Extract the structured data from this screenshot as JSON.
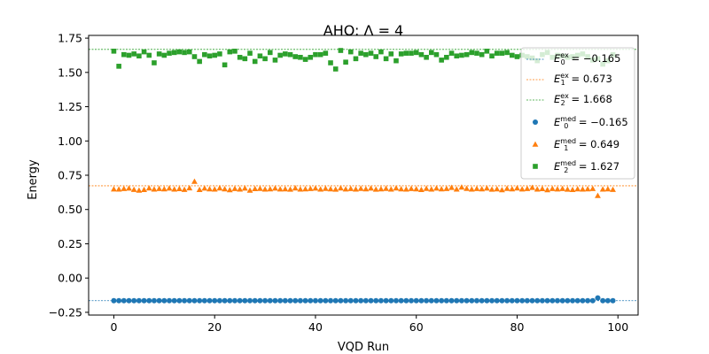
{
  "chart_data": {
    "type": "scatter",
    "title": "AHO: Λ = 4",
    "xlabel": "VQD Run",
    "ylabel": "Energy",
    "xlim": [
      -5,
      104
    ],
    "ylim": [
      -0.27,
      1.77
    ],
    "xticks": [
      0,
      20,
      40,
      60,
      80,
      100
    ],
    "yticks": [
      -0.25,
      0.0,
      0.25,
      0.5,
      0.75,
      1.0,
      1.25,
      1.5,
      1.75
    ],
    "xtick_labels": [
      "0",
      "20",
      "40",
      "60",
      "80",
      "100"
    ],
    "ytick_labels": [
      "−0.25",
      "0.00",
      "0.25",
      "0.50",
      "0.75",
      "1.00",
      "1.25",
      "1.50",
      "1.75"
    ],
    "grid": false,
    "legend_position": "top-right",
    "reference_lines": [
      {
        "label_base": "E",
        "sub": "0",
        "sup": "ex",
        "value_text": " = −0.165",
        "y": -0.165,
        "color": "#1f77b4"
      },
      {
        "label_base": "E",
        "sub": "1",
        "sup": "ex",
        "value_text": " = 0.673",
        "y": 0.673,
        "color": "#ff7f0e"
      },
      {
        "label_base": "E",
        "sub": "2",
        "sup": "ex",
        "value_text": " = 1.668",
        "y": 1.668,
        "color": "#2ca02c"
      }
    ],
    "series": [
      {
        "label_base": "E",
        "sub": "0",
        "sup": "med",
        "value_text": " = −0.165",
        "marker": "circle",
        "color": "#1f77b4",
        "x": [
          0,
          1,
          2,
          3,
          4,
          5,
          6,
          7,
          8,
          9,
          10,
          11,
          12,
          13,
          14,
          15,
          16,
          17,
          18,
          19,
          20,
          21,
          22,
          23,
          24,
          25,
          26,
          27,
          28,
          29,
          30,
          31,
          32,
          33,
          34,
          35,
          36,
          37,
          38,
          39,
          40,
          41,
          42,
          43,
          44,
          45,
          46,
          47,
          48,
          49,
          50,
          51,
          52,
          53,
          54,
          55,
          56,
          57,
          58,
          59,
          60,
          61,
          62,
          63,
          64,
          65,
          66,
          67,
          68,
          69,
          70,
          71,
          72,
          73,
          74,
          75,
          76,
          77,
          78,
          79,
          80,
          81,
          82,
          83,
          84,
          85,
          86,
          87,
          88,
          89,
          90,
          91,
          92,
          93,
          94,
          95,
          96,
          97,
          98,
          99
        ],
        "values": [
          -0.165,
          -0.165,
          -0.165,
          -0.165,
          -0.165,
          -0.165,
          -0.165,
          -0.165,
          -0.165,
          -0.165,
          -0.165,
          -0.165,
          -0.165,
          -0.165,
          -0.165,
          -0.165,
          -0.165,
          -0.165,
          -0.165,
          -0.165,
          -0.165,
          -0.165,
          -0.165,
          -0.165,
          -0.165,
          -0.165,
          -0.165,
          -0.165,
          -0.165,
          -0.165,
          -0.165,
          -0.165,
          -0.165,
          -0.165,
          -0.165,
          -0.165,
          -0.165,
          -0.165,
          -0.165,
          -0.165,
          -0.165,
          -0.165,
          -0.165,
          -0.165,
          -0.165,
          -0.165,
          -0.165,
          -0.165,
          -0.165,
          -0.165,
          -0.165,
          -0.165,
          -0.165,
          -0.165,
          -0.165,
          -0.165,
          -0.165,
          -0.165,
          -0.165,
          -0.165,
          -0.165,
          -0.165,
          -0.165,
          -0.165,
          -0.165,
          -0.165,
          -0.165,
          -0.165,
          -0.165,
          -0.165,
          -0.165,
          -0.165,
          -0.165,
          -0.165,
          -0.165,
          -0.165,
          -0.165,
          -0.165,
          -0.165,
          -0.165,
          -0.165,
          -0.165,
          -0.165,
          -0.165,
          -0.165,
          -0.165,
          -0.165,
          -0.165,
          -0.165,
          -0.165,
          -0.165,
          -0.165,
          -0.165,
          -0.165,
          -0.165,
          -0.165,
          -0.145,
          -0.165,
          -0.165,
          -0.165
        ]
      },
      {
        "label_base": "E",
        "sub": "1",
        "sup": "med",
        "value_text": " = 0.649",
        "marker": "triangle",
        "color": "#ff7f0e",
        "x": [
          0,
          1,
          2,
          3,
          4,
          5,
          6,
          7,
          8,
          9,
          10,
          11,
          12,
          13,
          14,
          15,
          16,
          17,
          18,
          19,
          20,
          21,
          22,
          23,
          24,
          25,
          26,
          27,
          28,
          29,
          30,
          31,
          32,
          33,
          34,
          35,
          36,
          37,
          38,
          39,
          40,
          41,
          42,
          43,
          44,
          45,
          46,
          47,
          48,
          49,
          50,
          51,
          52,
          53,
          54,
          55,
          56,
          57,
          58,
          59,
          60,
          61,
          62,
          63,
          64,
          65,
          66,
          67,
          68,
          69,
          70,
          71,
          72,
          73,
          74,
          75,
          76,
          77,
          78,
          79,
          80,
          81,
          82,
          83,
          84,
          85,
          86,
          87,
          88,
          89,
          90,
          91,
          92,
          93,
          94,
          95,
          96,
          97,
          98,
          99
        ],
        "values": [
          0.649,
          0.648,
          0.652,
          0.655,
          0.646,
          0.64,
          0.645,
          0.656,
          0.648,
          0.652,
          0.65,
          0.655,
          0.648,
          0.651,
          0.646,
          0.657,
          0.705,
          0.645,
          0.655,
          0.65,
          0.648,
          0.656,
          0.65,
          0.643,
          0.652,
          0.648,
          0.655,
          0.64,
          0.651,
          0.653,
          0.648,
          0.65,
          0.655,
          0.649,
          0.65,
          0.647,
          0.656,
          0.648,
          0.65,
          0.652,
          0.655,
          0.648,
          0.653,
          0.65,
          0.647,
          0.656,
          0.649,
          0.652,
          0.648,
          0.653,
          0.65,
          0.655,
          0.647,
          0.65,
          0.653,
          0.648,
          0.656,
          0.65,
          0.648,
          0.652,
          0.65,
          0.645,
          0.653,
          0.648,
          0.655,
          0.65,
          0.652,
          0.66,
          0.648,
          0.663,
          0.653,
          0.648,
          0.652,
          0.65,
          0.655,
          0.647,
          0.65,
          0.643,
          0.653,
          0.65,
          0.656,
          0.649,
          0.652,
          0.66,
          0.648,
          0.651,
          0.643,
          0.652,
          0.649,
          0.652,
          0.647,
          0.645,
          0.65,
          0.648,
          0.65,
          0.652,
          0.601,
          0.648,
          0.65,
          0.646
        ]
      },
      {
        "label_base": "E",
        "sub": "2",
        "sup": "med",
        "value_text": " = 1.627",
        "marker": "square",
        "color": "#2ca02c",
        "x": [
          0,
          1,
          2,
          3,
          4,
          5,
          6,
          7,
          8,
          9,
          10,
          11,
          12,
          13,
          14,
          15,
          16,
          17,
          18,
          19,
          20,
          21,
          22,
          23,
          24,
          25,
          26,
          27,
          28,
          29,
          30,
          31,
          32,
          33,
          34,
          35,
          36,
          37,
          38,
          39,
          40,
          41,
          42,
          43,
          44,
          45,
          46,
          47,
          48,
          49,
          50,
          51,
          52,
          53,
          54,
          55,
          56,
          57,
          58,
          59,
          60,
          61,
          62,
          63,
          64,
          65,
          66,
          67,
          68,
          69,
          70,
          71,
          72,
          73,
          74,
          75,
          76,
          77,
          78,
          79,
          80,
          81,
          82,
          83,
          84,
          85,
          86,
          87,
          88,
          89,
          90,
          91,
          92,
          93,
          94,
          95,
          96,
          97,
          98,
          99
        ],
        "values": [
          1.655,
          1.545,
          1.63,
          1.625,
          1.635,
          1.62,
          1.65,
          1.625,
          1.57,
          1.635,
          1.625,
          1.64,
          1.645,
          1.65,
          1.645,
          1.65,
          1.615,
          1.58,
          1.63,
          1.62,
          1.625,
          1.635,
          1.555,
          1.65,
          1.655,
          1.61,
          1.6,
          1.64,
          1.58,
          1.62,
          1.6,
          1.645,
          1.59,
          1.625,
          1.635,
          1.63,
          1.615,
          1.61,
          1.595,
          1.61,
          1.63,
          1.63,
          1.64,
          1.57,
          1.525,
          1.66,
          1.575,
          1.65,
          1.6,
          1.64,
          1.63,
          1.64,
          1.615,
          1.65,
          1.6,
          1.635,
          1.585,
          1.635,
          1.64,
          1.64,
          1.645,
          1.63,
          1.61,
          1.645,
          1.63,
          1.59,
          1.61,
          1.64,
          1.62,
          1.625,
          1.63,
          1.645,
          1.64,
          1.63,
          1.655,
          1.62,
          1.64,
          1.64,
          1.645,
          1.625,
          1.615,
          1.625,
          1.615,
          1.605,
          1.585,
          1.63,
          1.645,
          1.61,
          1.625,
          1.62,
          1.61,
          1.615,
          1.625,
          1.635,
          1.615,
          1.59,
          1.6,
          1.56,
          1.585,
          1.63
        ]
      }
    ]
  }
}
